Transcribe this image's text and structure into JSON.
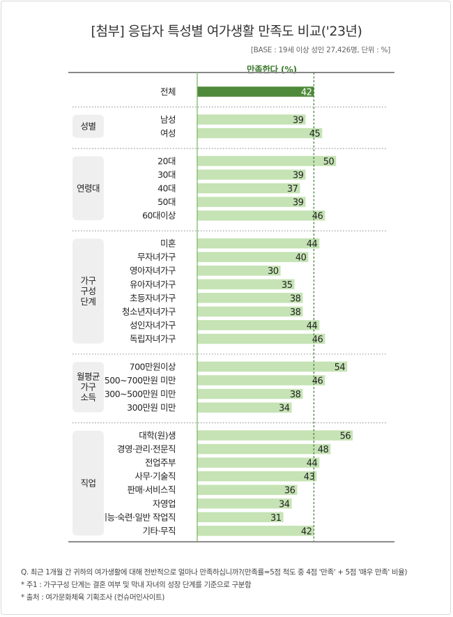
{
  "title": "[첨부] 응답자 특성별 여가생활 만족도  비교('23년)",
  "base_note": "[BASE : 19세 이상 성인 27,426명, 단위 : %]",
  "chart_data": {
    "type": "bar",
    "orientation": "horizontal",
    "value_header": "만족한다 (%)",
    "colors": {
      "total_bar": "#4e8a3a",
      "bar": "#c5e3b4",
      "total_label": "#ffffff",
      "reference_line": "#3d7a2f"
    },
    "reference_value": 42,
    "groups": [
      {
        "name": "",
        "items": [
          {
            "label": "전체",
            "value": 42
          }
        ]
      },
      {
        "name": "성별",
        "items": [
          {
            "label": "남성",
            "value": 39
          },
          {
            "label": "여성",
            "value": 45
          }
        ]
      },
      {
        "name": "연령대",
        "items": [
          {
            "label": "20대",
            "value": 50
          },
          {
            "label": "30대",
            "value": 39
          },
          {
            "label": "40대",
            "value": 37
          },
          {
            "label": "50대",
            "value": 39
          },
          {
            "label": "60대이상",
            "value": 46
          }
        ]
      },
      {
        "name": "가구\n구성\n단계",
        "items": [
          {
            "label": "미혼",
            "value": 44
          },
          {
            "label": "무자녀가구",
            "value": 40
          },
          {
            "label": "영아자녀가구",
            "value": 30
          },
          {
            "label": "유아자녀가구",
            "value": 35
          },
          {
            "label": "초등자녀가구",
            "value": 38
          },
          {
            "label": "청소년자녀가구",
            "value": 38
          },
          {
            "label": "성인자녀가구",
            "value": 44
          },
          {
            "label": "독립자녀가구",
            "value": 46
          }
        ]
      },
      {
        "name": "월평균\n가구\n소득",
        "items": [
          {
            "label": "700만원이상",
            "value": 54
          },
          {
            "label": "500~700만원 미만",
            "value": 46
          },
          {
            "label": "300~500만원 미만",
            "value": 38
          },
          {
            "label": "300만원 미만",
            "value": 34
          }
        ]
      },
      {
        "name": "직업",
        "items": [
          {
            "label": "대학(원)생",
            "value": 56
          },
          {
            "label": "경영·관리·전문직",
            "value": 48
          },
          {
            "label": "전업주부",
            "value": 44
          },
          {
            "label": "사무·기술직",
            "value": 43
          },
          {
            "label": "판매·서비스직",
            "value": 36
          },
          {
            "label": "자영업",
            "value": 34
          },
          {
            "label": "기능·숙련·일반 작업직",
            "value": 31
          },
          {
            "label": "기타·무직",
            "value": 42
          }
        ]
      }
    ]
  },
  "notes": [
    "Q. 최근 1개월 간 귀하의 여가생활에 대해 전반적으로 얼마나 만족하십니까?(만족률=5점 척도 중 4점 '만족' + 5점 '매우 만족' 비율)",
    "* 주1 : 가구구성 단계는 결혼 여부 및 막내 자녀의 성장 단계를 기준으로 구분함",
    "* 출처 : 여가문화체육 기획조사 (컨슈머인사이트)"
  ]
}
